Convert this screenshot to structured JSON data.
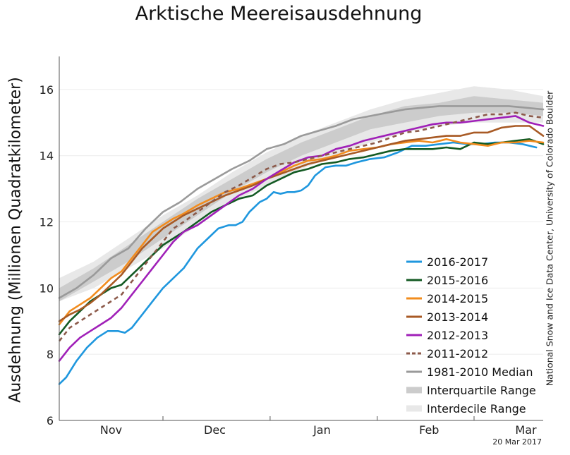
{
  "chart_data": {
    "type": "line",
    "title": "Arktische Meereisausdehnung",
    "ylabel": "Ausdehnung (Millionen Quadratkilometer)",
    "ylim": [
      6,
      17
    ],
    "yticks": [
      6,
      8,
      10,
      12,
      14,
      16
    ],
    "xlim": [
      0,
      140
    ],
    "month_labels": [
      {
        "label": "Nov",
        "x": 15
      },
      {
        "label": "Dec",
        "x": 45
      },
      {
        "label": "Jan",
        "x": 76
      },
      {
        "label": "Feb",
        "x": 107
      },
      {
        "label": "Mar",
        "x": 135
      }
    ],
    "month_boundaries": [
      0,
      30,
      61,
      92,
      120
    ],
    "grid": true,
    "legend_placement": "bottom-right",
    "credit": "National Snow and Ice Data Center, University of Colorado Boulder",
    "date_label": "20 Mar 2017",
    "bands": [
      {
        "name": "Interdecile Range",
        "color": "#e8e8e8",
        "x": [
          0,
          10,
          20,
          30,
          40,
          50,
          60,
          70,
          80,
          90,
          100,
          110,
          120,
          130,
          140
        ],
        "lower": [
          9.6,
          10.0,
          10.6,
          11.2,
          11.9,
          12.6,
          13.1,
          13.6,
          14.0,
          14.4,
          14.7,
          14.9,
          15.0,
          15.0,
          15.0
        ],
        "upper": [
          10.3,
          10.8,
          11.5,
          12.2,
          12.8,
          13.5,
          14.1,
          14.6,
          15.0,
          15.4,
          15.7,
          15.9,
          16.1,
          16.0,
          15.8
        ]
      },
      {
        "name": "Interquartile Range",
        "color": "#cccccc",
        "x": [
          0,
          10,
          20,
          30,
          40,
          50,
          60,
          70,
          80,
          90,
          100,
          110,
          120,
          130,
          140
        ],
        "lower": [
          9.6,
          10.2,
          10.8,
          11.5,
          12.2,
          12.9,
          13.5,
          14.0,
          14.4,
          14.8,
          15.0,
          15.2,
          15.3,
          15.3,
          15.2
        ],
        "upper": [
          10.0,
          10.6,
          11.3,
          12.0,
          12.7,
          13.3,
          13.9,
          14.4,
          14.8,
          15.2,
          15.5,
          15.6,
          15.8,
          15.7,
          15.6
        ]
      }
    ],
    "series": [
      {
        "name": "2016-2017",
        "color": "#1f97de",
        "dash": false,
        "x": [
          0,
          2,
          5,
          8,
          11,
          14,
          17,
          19,
          21,
          24,
          27,
          30,
          33,
          36,
          38,
          40,
          43,
          46,
          49,
          51,
          53,
          55,
          58,
          60,
          62,
          64,
          66,
          68,
          70,
          72,
          74,
          77,
          80,
          83,
          86,
          90,
          94,
          98,
          102,
          106,
          110,
          114,
          118,
          122,
          126,
          130,
          134,
          138
        ],
        "values": [
          7.1,
          7.3,
          7.8,
          8.2,
          8.5,
          8.7,
          8.7,
          8.65,
          8.8,
          9.2,
          9.6,
          10.0,
          10.3,
          10.6,
          10.9,
          11.2,
          11.5,
          11.8,
          11.9,
          11.9,
          12.0,
          12.3,
          12.6,
          12.7,
          12.9,
          12.85,
          12.9,
          12.9,
          12.95,
          13.1,
          13.4,
          13.65,
          13.7,
          13.7,
          13.8,
          13.9,
          13.95,
          14.1,
          14.3,
          14.3,
          14.35,
          14.4,
          14.35,
          14.35,
          14.4,
          14.4,
          14.35,
          14.25
        ]
      },
      {
        "name": "2015-2016",
        "color": "#135a23",
        "dash": false,
        "x": [
          0,
          3,
          6,
          9,
          12,
          15,
          18,
          21,
          24,
          27,
          30,
          33,
          36,
          40,
          44,
          48,
          52,
          56,
          60,
          64,
          68,
          72,
          76,
          80,
          84,
          88,
          92,
          96,
          100,
          104,
          108,
          112,
          116,
          120,
          124,
          128,
          132,
          136,
          140
        ],
        "values": [
          8.6,
          9.0,
          9.3,
          9.6,
          9.8,
          10.0,
          10.1,
          10.4,
          10.7,
          11.0,
          11.3,
          11.5,
          11.7,
          12.0,
          12.3,
          12.5,
          12.7,
          12.8,
          13.1,
          13.3,
          13.5,
          13.6,
          13.75,
          13.8,
          13.9,
          13.95,
          14.05,
          14.15,
          14.2,
          14.2,
          14.2,
          14.25,
          14.2,
          14.4,
          14.35,
          14.4,
          14.45,
          14.5,
          14.35
        ]
      },
      {
        "name": "2014-2015",
        "color": "#f28c1e",
        "dash": false,
        "x": [
          0,
          3,
          6,
          9,
          12,
          15,
          18,
          21,
          24,
          27,
          30,
          33,
          36,
          40,
          44,
          48,
          52,
          56,
          60,
          64,
          68,
          72,
          76,
          80,
          84,
          88,
          92,
          96,
          100,
          104,
          108,
          112,
          116,
          120,
          124,
          128,
          132,
          136,
          140
        ],
        "values": [
          8.9,
          9.3,
          9.5,
          9.7,
          10.0,
          10.3,
          10.5,
          10.9,
          11.3,
          11.7,
          11.9,
          12.1,
          12.25,
          12.5,
          12.7,
          12.9,
          13.0,
          13.15,
          13.3,
          13.5,
          13.7,
          13.85,
          13.9,
          14.0,
          14.15,
          14.2,
          14.25,
          14.35,
          14.4,
          14.45,
          14.4,
          14.5,
          14.4,
          14.35,
          14.3,
          14.4,
          14.4,
          14.45,
          14.4
        ]
      },
      {
        "name": "2013-2014",
        "color": "#a85a25",
        "dash": false,
        "x": [
          0,
          3,
          6,
          9,
          12,
          15,
          18,
          21,
          24,
          27,
          30,
          33,
          36,
          40,
          44,
          48,
          52,
          56,
          60,
          64,
          68,
          72,
          76,
          80,
          84,
          88,
          92,
          96,
          100,
          104,
          108,
          112,
          116,
          120,
          124,
          128,
          132,
          136,
          140
        ],
        "values": [
          9.0,
          9.2,
          9.35,
          9.55,
          9.8,
          10.1,
          10.4,
          10.8,
          11.2,
          11.5,
          11.8,
          12.0,
          12.2,
          12.4,
          12.6,
          12.8,
          12.95,
          13.1,
          13.3,
          13.45,
          13.6,
          13.75,
          13.85,
          13.95,
          14.05,
          14.15,
          14.25,
          14.35,
          14.45,
          14.5,
          14.55,
          14.6,
          14.6,
          14.7,
          14.7,
          14.85,
          14.9,
          14.9,
          14.6
        ]
      },
      {
        "name": "2012-2013",
        "color": "#a020b8",
        "dash": false,
        "x": [
          0,
          3,
          6,
          9,
          12,
          15,
          18,
          21,
          24,
          27,
          30,
          33,
          36,
          40,
          44,
          48,
          52,
          56,
          60,
          64,
          68,
          72,
          76,
          80,
          84,
          88,
          92,
          96,
          100,
          104,
          108,
          112,
          116,
          120,
          124,
          128,
          132,
          136,
          140
        ],
        "values": [
          7.8,
          8.2,
          8.5,
          8.7,
          8.9,
          9.1,
          9.4,
          9.8,
          10.2,
          10.6,
          11.0,
          11.4,
          11.7,
          11.9,
          12.2,
          12.5,
          12.8,
          13.0,
          13.3,
          13.55,
          13.8,
          13.95,
          14.0,
          14.2,
          14.3,
          14.45,
          14.55,
          14.65,
          14.75,
          14.85,
          14.95,
          15.0,
          15.0,
          15.05,
          15.1,
          15.15,
          15.2,
          15.0,
          14.9
        ]
      },
      {
        "name": "2011-2012",
        "color": "#8c5a4a",
        "dash": true,
        "x": [
          0,
          3,
          6,
          9,
          12,
          15,
          18,
          21,
          24,
          27,
          30,
          33,
          36,
          40,
          44,
          48,
          52,
          56,
          60,
          64,
          68,
          72,
          76,
          80,
          84,
          88,
          92,
          96,
          100,
          104,
          108,
          112,
          116,
          120,
          124,
          128,
          132,
          136,
          140
        ],
        "values": [
          8.4,
          8.8,
          9.0,
          9.2,
          9.4,
          9.6,
          9.8,
          10.2,
          10.6,
          11.0,
          11.4,
          11.8,
          12.0,
          12.3,
          12.6,
          12.9,
          13.1,
          13.35,
          13.6,
          13.75,
          13.8,
          13.9,
          14.0,
          14.1,
          14.2,
          14.3,
          14.4,
          14.55,
          14.7,
          14.75,
          14.85,
          14.95,
          15.05,
          15.15,
          15.25,
          15.25,
          15.3,
          15.2,
          15.15
        ]
      },
      {
        "name": "1981-2010 Median",
        "color": "#9a9a9a",
        "dash": false,
        "x": [
          0,
          5,
          10,
          15,
          20,
          25,
          30,
          35,
          40,
          45,
          50,
          55,
          60,
          65,
          70,
          75,
          80,
          85,
          90,
          95,
          100,
          105,
          110,
          115,
          120,
          125,
          130,
          135,
          140
        ],
        "values": [
          9.7,
          10.0,
          10.4,
          10.9,
          11.2,
          11.8,
          12.3,
          12.6,
          13.0,
          13.3,
          13.6,
          13.85,
          14.2,
          14.35,
          14.6,
          14.75,
          14.9,
          15.1,
          15.2,
          15.3,
          15.4,
          15.45,
          15.5,
          15.5,
          15.5,
          15.5,
          15.5,
          15.45,
          15.4
        ]
      }
    ],
    "legend": [
      {
        "label": "2016-2017",
        "color": "#1f97de",
        "kind": "line"
      },
      {
        "label": "2015-2016",
        "color": "#135a23",
        "kind": "line"
      },
      {
        "label": "2014-2015",
        "color": "#f28c1e",
        "kind": "line"
      },
      {
        "label": "2013-2014",
        "color": "#a85a25",
        "kind": "line"
      },
      {
        "label": "2012-2013",
        "color": "#a020b8",
        "kind": "line"
      },
      {
        "label": "2011-2012",
        "color": "#8c5a4a",
        "kind": "dash"
      },
      {
        "label": "1981-2010 Median",
        "color": "#9a9a9a",
        "kind": "line"
      },
      {
        "label": "Interquartile Range",
        "color": "#cccccc",
        "kind": "band"
      },
      {
        "label": "Interdecile Range",
        "color": "#e8e8e8",
        "kind": "band"
      }
    ]
  }
}
